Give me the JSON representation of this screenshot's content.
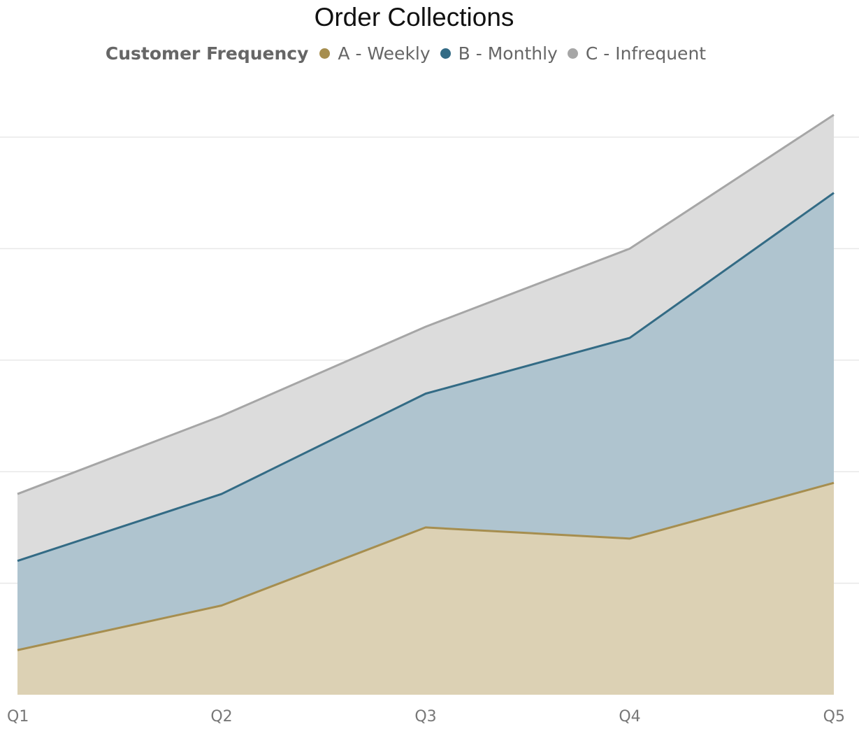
{
  "chart_data": {
    "type": "area",
    "stacked": true,
    "title": "Order Collections",
    "legend": {
      "title": "Customer Frequency",
      "placement": "top-center"
    },
    "categories": [
      "Q1",
      "Q2",
      "Q3",
      "Q4",
      "Q5"
    ],
    "series": [
      {
        "name": "A - Weekly",
        "color": "#a68e4f",
        "fill": "#dcd1b4",
        "values": [
          4,
          8,
          15,
          14,
          19
        ]
      },
      {
        "name": "B - Monthly",
        "color": "#336b85",
        "fill": "#afc4cf",
        "values": [
          8,
          10,
          12,
          18,
          26
        ]
      },
      {
        "name": "C - Infrequent",
        "color": "#a6a6a6",
        "fill": "#dcdcdc",
        "values": [
          6,
          7,
          6,
          8,
          7
        ]
      }
    ],
    "ylim": [
      0,
      50
    ],
    "y_gridlines": [
      10,
      20,
      30,
      40,
      50
    ],
    "grid": true,
    "y_axis_labels_visible": false,
    "xlabel": "",
    "ylabel": ""
  }
}
